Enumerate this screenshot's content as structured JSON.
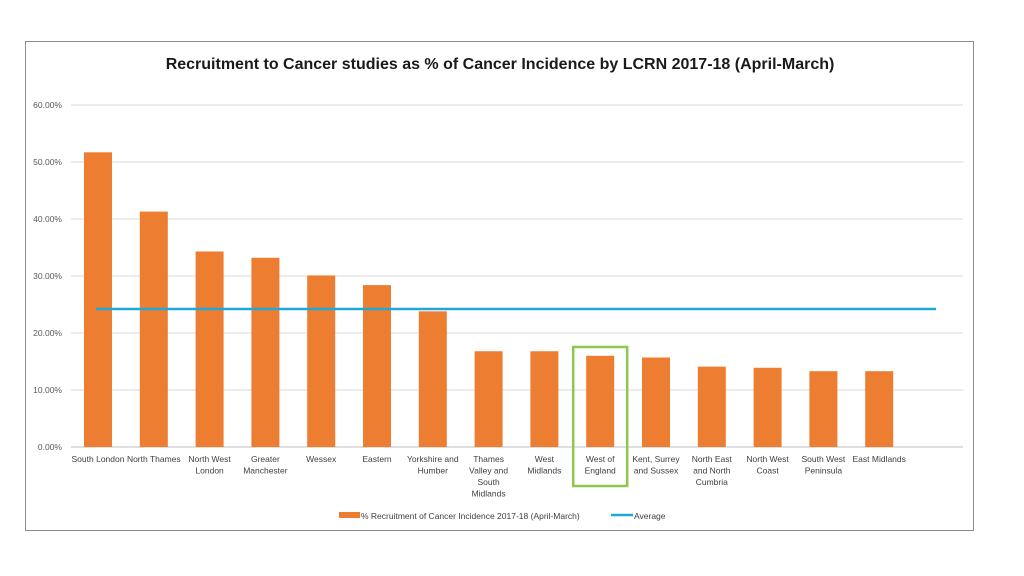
{
  "chart_data": {
    "type": "bar",
    "title": "Recruitment to Cancer studies as % of Cancer Incidence by LCRN 2017-18 (April-March)",
    "xlabel": "",
    "ylabel": "",
    "ylim": [
      0,
      60
    ],
    "yticks": [
      "0.00%",
      "10.00%",
      "20.00%",
      "30.00%",
      "40.00%",
      "50.00%",
      "60.00%"
    ],
    "grid": true,
    "legend_position": "bottom",
    "categories": [
      [
        "South London"
      ],
      [
        "North Thames"
      ],
      [
        "North West",
        "London"
      ],
      [
        "Greater",
        "Manchester"
      ],
      [
        "Wessex"
      ],
      [
        "Eastern"
      ],
      [
        "Yorkshire and",
        "Humber"
      ],
      [
        "Thames",
        "Valley and",
        "South",
        "Midlands"
      ],
      [
        "West",
        "Midlands"
      ],
      [
        "West of",
        "England"
      ],
      [
        "Kent, Surrey",
        "and Sussex"
      ],
      [
        "North East",
        "and North",
        "Cumbria"
      ],
      [
        "North West",
        "Coast"
      ],
      [
        "South West",
        "Peninsula"
      ],
      [
        "East Midlands"
      ]
    ],
    "series": [
      {
        "name": "% Recruitment of Cancer Incidence 2017-18 (April-March)",
        "kind": "bar",
        "color": "#ed7d31",
        "values": [
          51.7,
          41.3,
          34.3,
          33.2,
          30.1,
          28.4,
          23.8,
          16.8,
          16.8,
          16.0,
          15.7,
          14.1,
          13.9,
          13.3,
          13.3
        ]
      },
      {
        "name": "Average",
        "kind": "line",
        "color": "#1fa7d9",
        "value": 24.2
      }
    ],
    "highlight": {
      "category_index": 9,
      "color": "#8cc84b"
    }
  }
}
